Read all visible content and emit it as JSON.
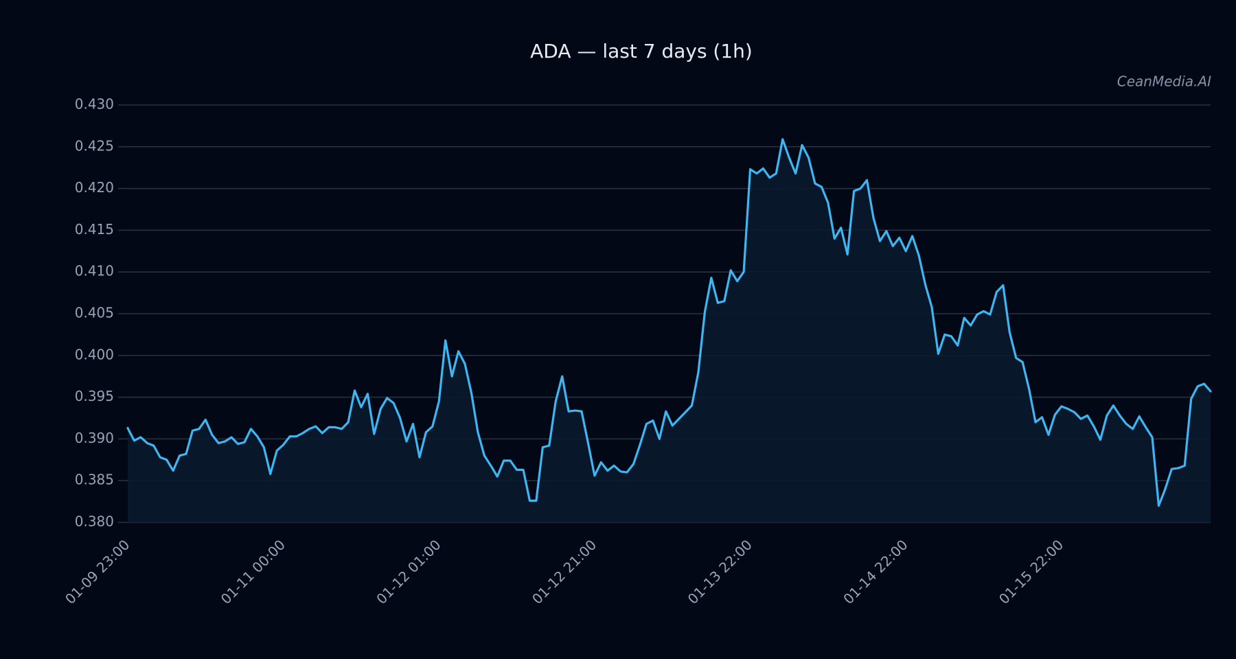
{
  "chart_data": {
    "type": "line",
    "title": "ADA — last 7 days (1h)",
    "watermark": "CeanMedia.AI",
    "color": "#3db6f2",
    "area_color": "#0a1a2e",
    "grid": true,
    "ylim": [
      0.38,
      0.43
    ],
    "yticks": [
      {
        "value": 0.38,
        "label": "0.380"
      },
      {
        "value": 0.385,
        "label": "0.385"
      },
      {
        "value": 0.39,
        "label": "0.390"
      },
      {
        "value": 0.395,
        "label": "0.395"
      },
      {
        "value": 0.4,
        "label": "0.400"
      },
      {
        "value": 0.405,
        "label": "0.405"
      },
      {
        "value": 0.41,
        "label": "0.410"
      },
      {
        "value": 0.415,
        "label": "0.415"
      },
      {
        "value": 0.42,
        "label": "0.420"
      },
      {
        "value": 0.425,
        "label": "0.425"
      },
      {
        "value": 0.43,
        "label": "0.430"
      }
    ],
    "categories": [
      "01-09 23:00",
      null,
      null,
      null,
      null,
      null,
      null,
      null,
      null,
      null,
      null,
      null,
      null,
      null,
      null,
      null,
      null,
      null,
      null,
      null,
      null,
      null,
      null,
      null,
      "01-11 00:00",
      null,
      null,
      null,
      null,
      null,
      null,
      null,
      null,
      null,
      null,
      null,
      null,
      null,
      null,
      null,
      null,
      null,
      null,
      null,
      null,
      null,
      null,
      null,
      "01-12 01:00",
      null,
      null,
      null,
      null,
      null,
      null,
      null,
      null,
      null,
      null,
      null,
      null,
      null,
      null,
      null,
      null,
      null,
      null,
      null,
      null,
      null,
      null,
      null,
      "01-12 21:00",
      null,
      null,
      null,
      null,
      null,
      null,
      null,
      null,
      null,
      null,
      null,
      null,
      null,
      null,
      null,
      null,
      null,
      null,
      null,
      null,
      null,
      null,
      null,
      "01-13 22:00",
      null,
      null,
      null,
      null,
      null,
      null,
      null,
      null,
      null,
      null,
      null,
      null,
      null,
      null,
      null,
      null,
      null,
      null,
      null,
      null,
      null,
      null,
      null,
      "01-14 22:00",
      null,
      null,
      null,
      null,
      null,
      null,
      null,
      null,
      null,
      null,
      null,
      null,
      null,
      null,
      null,
      null,
      null,
      null,
      null,
      null,
      null,
      null,
      null,
      "01-15 22:00",
      null,
      null,
      null,
      null,
      null,
      null,
      null,
      null,
      null,
      null,
      null,
      null,
      null,
      null,
      null,
      null,
      null,
      null,
      null,
      null,
      null,
      null,
      null
    ],
    "values": [
      0.3913,
      0.3898,
      0.3902,
      0.3895,
      0.3892,
      0.3878,
      0.3875,
      0.3862,
      0.388,
      0.3882,
      0.391,
      0.3912,
      0.3923,
      0.3905,
      0.3895,
      0.3897,
      0.3902,
      0.3894,
      0.3896,
      0.3912,
      0.3903,
      0.389,
      0.3858,
      0.3886,
      0.3893,
      0.3903,
      0.3903,
      0.3907,
      0.3912,
      0.3915,
      0.3907,
      0.3914,
      0.3914,
      0.3912,
      0.392,
      0.3958,
      0.3938,
      0.3954,
      0.3906,
      0.3936,
      0.3949,
      0.3943,
      0.3925,
      0.3897,
      0.3918,
      0.3878,
      0.3908,
      0.3915,
      0.3945,
      0.4018,
      0.3975,
      0.4005,
      0.399,
      0.3955,
      0.3908,
      0.388,
      0.3868,
      0.3855,
      0.3874,
      0.3874,
      0.3863,
      0.3863,
      0.3826,
      0.3826,
      0.389,
      0.3892,
      0.3945,
      0.3975,
      0.3933,
      0.3934,
      0.3933,
      0.3895,
      0.3856,
      0.3872,
      0.3862,
      0.3868,
      0.3861,
      0.386,
      0.387,
      0.3893,
      0.3918,
      0.3922,
      0.39,
      0.3933,
      0.3916,
      0.3924,
      0.3932,
      0.394,
      0.398,
      0.4052,
      0.4093,
      0.4063,
      0.4065,
      0.4102,
      0.4089,
      0.41,
      0.4223,
      0.4218,
      0.4224,
      0.4213,
      0.4218,
      0.4259,
      0.4237,
      0.4218,
      0.4252,
      0.4237,
      0.4206,
      0.4202,
      0.4183,
      0.414,
      0.4153,
      0.4121,
      0.4197,
      0.42,
      0.421,
      0.4165,
      0.4137,
      0.4149,
      0.4131,
      0.4141,
      0.4125,
      0.4143,
      0.412,
      0.4085,
      0.4058,
      0.4002,
      0.4025,
      0.4023,
      0.4012,
      0.4045,
      0.4036,
      0.4049,
      0.4053,
      0.4049,
      0.4076,
      0.4084,
      0.4028,
      0.3997,
      0.3992,
      0.396,
      0.392,
      0.3926,
      0.3905,
      0.3929,
      0.3939,
      0.3936,
      0.3932,
      0.3924,
      0.3928,
      0.3915,
      0.3899,
      0.3928,
      0.394,
      0.3928,
      0.3918,
      0.3912,
      0.3927,
      0.3914,
      0.3902,
      0.382,
      0.384,
      0.3864,
      0.3865,
      0.3868,
      0.3948,
      0.3963,
      0.3966,
      0.3957
    ]
  }
}
